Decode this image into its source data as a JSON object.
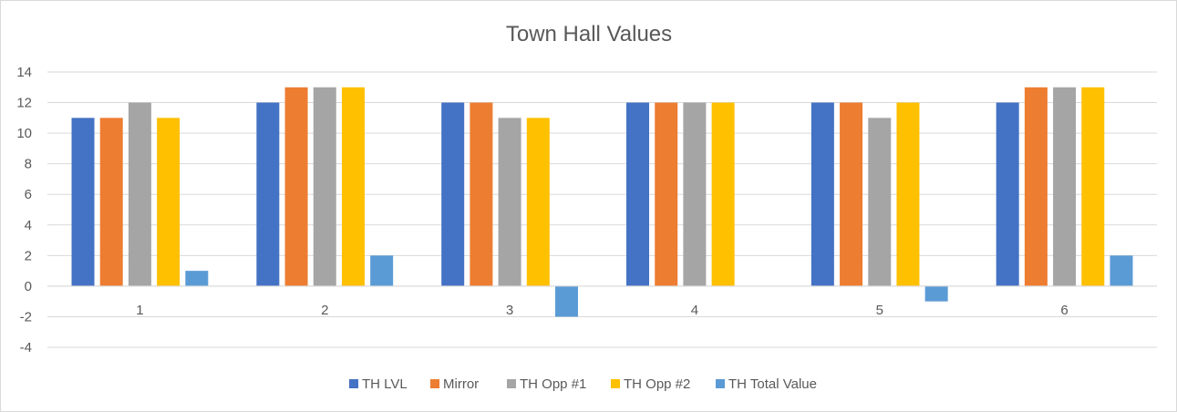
{
  "chart_data": {
    "type": "bar",
    "title": "Town Hall Values",
    "xlabel": "",
    "ylabel": "",
    "categories": [
      "1",
      "2",
      "3",
      "4",
      "5",
      "6"
    ],
    "series": [
      {
        "name": "TH LVL",
        "color": "#4472c4",
        "values": [
          11,
          12,
          12,
          12,
          12,
          12
        ]
      },
      {
        "name": "Mirror",
        "color": "#ed7d31",
        "values": [
          11,
          13,
          12,
          12,
          12,
          13
        ]
      },
      {
        "name": "TH Opp #1",
        "color": "#a5a5a5",
        "values": [
          12,
          13,
          11,
          12,
          11,
          13
        ]
      },
      {
        "name": "TH Opp #2",
        "color": "#ffc000",
        "values": [
          11,
          13,
          11,
          12,
          12,
          13
        ]
      },
      {
        "name": "TH Total Value",
        "color": "#5b9bd5",
        "values": [
          1,
          2,
          -2,
          0,
          -1,
          2
        ]
      }
    ],
    "ylim": [
      -4,
      14
    ],
    "yticks": [
      14,
      12,
      10,
      8,
      6,
      4,
      2,
      0,
      -2,
      -4
    ],
    "grid": true,
    "legend_position": "bottom"
  }
}
